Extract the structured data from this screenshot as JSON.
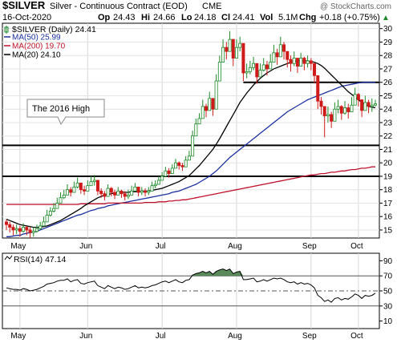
{
  "header": {
    "symbol": "$SILVER",
    "description": "Silver - Continuous Contract (EOD)",
    "exchange": "CME",
    "date": "16-Oct-2020",
    "open_label": "Op",
    "open": "24.43",
    "high_label": "Hi",
    "high": "24.66",
    "low_label": "Lo",
    "low": "24.18",
    "close_label": "Cl",
    "close": "24.41",
    "vol_label": "Vol",
    "vol": "5.1M",
    "chg_label": "Chg",
    "chg": "+0.18 (+0.75%)",
    "arrow": "▲"
  },
  "legend": [
    {
      "label": "$SILVER (Daily) 24.41",
      "color": "#000000"
    },
    {
      "label": "MA(50) 25.99",
      "color": "#1c2f9e"
    },
    {
      "label": "MA(200) 19.70",
      "color": "#c0112b"
    },
    {
      "label": "MA(20) 24.10",
      "color": "#000000"
    }
  ],
  "watermark": "@ StockCharts.com",
  "annotation": "The 2016 High",
  "rsi_label": "RSI(14) 47.14",
  "colors": {
    "up": "#1e8a2a",
    "down": "#d01a1a",
    "ma50": "#1c2f9e",
    "ma200": "#c0112b",
    "ma20": "#000000",
    "rsi_fill": "#5a8a5a"
  },
  "chart_data": [
    {
      "type": "candlestick",
      "x_tick_labels": [
        "May",
        "Jun",
        "Jul",
        "Aug",
        "Sep",
        "Oct"
      ],
      "y_tick_labels": [
        "15",
        "16",
        "17",
        "18",
        "19",
        "20",
        "21",
        "22",
        "23",
        "24",
        "25",
        "26",
        "27",
        "28",
        "29",
        "30"
      ],
      "ylim": [
        14.4,
        30.4
      ],
      "horizontal_lines": [
        26.0,
        21.3,
        19.0
      ],
      "series": [
        {
          "name": "$SILVER (Daily) 24.41",
          "close": [
            15.4,
            15.2,
            15.0,
            15.1,
            14.9,
            15.2,
            15.0,
            14.8,
            14.9,
            15.1,
            15.3,
            15.6,
            16.1,
            16.4,
            16.6,
            17.0,
            17.4,
            17.6,
            18.0,
            17.8,
            18.2,
            18.5,
            18.0,
            17.9,
            18.3,
            18.6,
            18.7,
            17.9,
            17.7,
            17.5,
            18.1,
            17.8,
            17.6,
            17.9,
            17.7,
            17.5,
            17.6,
            17.9,
            18.2,
            17.8,
            17.9,
            17.8,
            17.9,
            18.3,
            18.4,
            18.7,
            19.0,
            19.4,
            19.2,
            19.6,
            20.0,
            19.8,
            19.7,
            20.2,
            20.5,
            22.0,
            22.9,
            23.3,
            24.2,
            23.9,
            24.8,
            24.0,
            26.1,
            27.5,
            28.6,
            28.3,
            29.2,
            27.8,
            28.6,
            28.9,
            26.7,
            26.8,
            27.1,
            27.4,
            26.4,
            26.9,
            27.3,
            27.0,
            27.5,
            28.2,
            27.9,
            28.8,
            28.3,
            27.7,
            27.4,
            27.8,
            27.2,
            27.8,
            27.4,
            27.6,
            27.4,
            26.5,
            24.6,
            24.2,
            23.5,
            23.6,
            23.1,
            24.0,
            24.2,
            23.7,
            24.1,
            23.8,
            24.3,
            25.1,
            24.7,
            23.9,
            24.5,
            24.2,
            24.3,
            24.4
          ],
          "high": [
            15.8,
            15.6,
            15.4,
            15.4,
            15.3,
            15.5,
            15.3,
            15.2,
            15.2,
            15.4,
            15.6,
            16.0,
            16.5,
            16.7,
            17.0,
            17.4,
            17.8,
            18.0,
            18.4,
            18.2,
            18.6,
            18.9,
            18.5,
            18.3,
            18.7,
            19.0,
            19.1,
            18.4,
            18.1,
            17.9,
            18.4,
            18.2,
            18.0,
            18.2,
            18.0,
            17.9,
            18.0,
            18.3,
            18.5,
            18.2,
            18.2,
            18.1,
            18.2,
            18.6,
            18.7,
            19.0,
            19.3,
            19.7,
            19.6,
            19.9,
            20.3,
            20.1,
            20.0,
            20.5,
            20.9,
            22.4,
            23.3,
            23.7,
            24.7,
            24.4,
            25.3,
            24.7,
            26.6,
            28.0,
            29.2,
            29.0,
            29.8,
            28.6,
            29.2,
            29.4,
            27.5,
            27.4,
            27.6,
            27.9,
            27.1,
            27.4,
            27.8,
            27.6,
            28.1,
            28.8,
            28.5,
            29.4,
            29.0,
            28.3,
            28.0,
            28.3,
            27.8,
            28.2,
            27.9,
            28.0,
            27.8,
            27.0,
            25.3,
            24.9,
            24.2,
            24.2,
            23.8,
            24.5,
            24.7,
            24.3,
            24.6,
            24.4,
            24.9,
            25.6,
            25.2,
            24.5,
            25.0,
            24.7,
            24.8,
            24.7
          ],
          "low": [
            15.0,
            14.8,
            14.6,
            14.7,
            14.5,
            14.8,
            14.6,
            14.4,
            14.5,
            14.8,
            15.0,
            15.3,
            15.8,
            16.0,
            16.3,
            16.7,
            17.0,
            17.3,
            17.6,
            17.5,
            17.9,
            18.1,
            17.7,
            17.6,
            18.0,
            18.3,
            18.3,
            17.6,
            17.4,
            17.2,
            17.8,
            17.5,
            17.3,
            17.6,
            17.4,
            17.2,
            17.3,
            17.6,
            17.9,
            17.5,
            17.6,
            17.5,
            17.6,
            18.0,
            18.1,
            18.4,
            18.7,
            19.1,
            18.9,
            19.3,
            19.7,
            19.5,
            19.4,
            19.9,
            20.2,
            21.6,
            22.5,
            22.9,
            23.7,
            23.4,
            24.3,
            23.5,
            25.6,
            27.0,
            28.0,
            27.7,
            28.6,
            27.2,
            28.0,
            28.3,
            26.1,
            26.3,
            26.6,
            26.9,
            25.9,
            26.4,
            26.8,
            26.5,
            27.0,
            27.6,
            27.3,
            28.2,
            27.7,
            27.1,
            26.8,
            27.2,
            26.7,
            27.3,
            26.9,
            27.1,
            26.9,
            25.9,
            24.0,
            23.6,
            21.9,
            23.0,
            22.6,
            23.4,
            23.7,
            23.2,
            23.6,
            23.3,
            23.8,
            24.6,
            24.2,
            23.4,
            24.0,
            23.7,
            23.8,
            24.2
          ]
        }
      ],
      "moving_averages": [
        {
          "name": "MA(50) 25.99",
          "y": [
            14.5,
            14.5,
            14.55,
            14.6,
            14.6,
            14.7,
            14.75,
            14.8,
            14.85,
            14.9,
            15.0,
            15.1,
            15.2,
            15.3,
            15.4,
            15.5,
            15.6,
            15.7,
            15.8,
            15.9,
            16.0,
            16.1,
            16.15,
            16.25,
            16.35,
            16.45,
            16.5,
            16.6,
            16.65,
            16.7,
            16.8,
            16.85,
            16.9,
            16.95,
            17.0,
            17.05,
            17.1,
            17.15,
            17.2,
            17.25,
            17.3,
            17.35,
            17.4,
            17.45,
            17.5,
            17.55,
            17.6,
            17.65,
            17.7,
            17.8,
            17.85,
            17.9,
            18.0,
            18.1,
            18.2,
            18.3,
            18.4,
            18.55,
            18.7,
            18.85,
            19.0,
            19.2,
            19.4,
            19.65,
            19.9,
            20.15,
            20.4,
            20.6,
            20.8,
            21.0,
            21.2,
            21.4,
            21.6,
            21.8,
            22.0,
            22.2,
            22.4,
            22.6,
            22.8,
            23.0,
            23.2,
            23.4,
            23.6,
            23.8,
            23.95,
            24.1,
            24.25,
            24.4,
            24.55,
            24.7,
            24.8,
            24.9,
            25.0,
            25.1,
            25.2,
            25.3,
            25.4,
            25.5,
            25.6,
            25.7,
            25.75,
            25.8,
            25.85,
            25.9,
            25.95,
            25.98,
            26.0,
            26.0,
            26.0,
            25.99
          ]
        },
        {
          "name": "MA(200) 19.70",
          "y": [
            16.9,
            16.9,
            16.9,
            16.9,
            16.9,
            16.9,
            16.9,
            16.9,
            16.9,
            16.9,
            16.9,
            16.9,
            16.9,
            16.9,
            16.9,
            16.9,
            16.9,
            16.9,
            16.9,
            16.9,
            16.9,
            16.9,
            16.95,
            16.95,
            16.95,
            16.95,
            16.95,
            16.95,
            16.95,
            16.95,
            17.0,
            17.0,
            17.0,
            17.0,
            17.0,
            17.0,
            17.0,
            17.0,
            17.0,
            17.0,
            17.0,
            17.05,
            17.05,
            17.05,
            17.05,
            17.1,
            17.1,
            17.1,
            17.15,
            17.15,
            17.2,
            17.2,
            17.25,
            17.25,
            17.3,
            17.35,
            17.4,
            17.45,
            17.5,
            17.55,
            17.6,
            17.65,
            17.7,
            17.75,
            17.8,
            17.85,
            17.9,
            17.95,
            18.0,
            18.05,
            18.1,
            18.15,
            18.2,
            18.25,
            18.3,
            18.35,
            18.4,
            18.45,
            18.5,
            18.55,
            18.6,
            18.65,
            18.7,
            18.75,
            18.8,
            18.85,
            18.9,
            18.95,
            19.0,
            19.05,
            19.1,
            19.1,
            19.15,
            19.2,
            19.2,
            19.25,
            19.3,
            19.3,
            19.35,
            19.4,
            19.4,
            19.45,
            19.5,
            19.5,
            19.55,
            19.6,
            19.6,
            19.65,
            19.7,
            19.7
          ]
        },
        {
          "name": "MA(20) 24.10",
          "y": [
            15.8,
            15.7,
            15.6,
            15.5,
            15.4,
            15.35,
            15.3,
            15.25,
            15.2,
            15.2,
            15.2,
            15.25,
            15.3,
            15.4,
            15.5,
            15.6,
            15.7,
            15.85,
            16.0,
            16.15,
            16.3,
            16.45,
            16.6,
            16.8,
            16.95,
            17.1,
            17.25,
            17.4,
            17.5,
            17.6,
            17.65,
            17.7,
            17.75,
            17.8,
            17.8,
            17.8,
            17.8,
            17.85,
            17.85,
            17.85,
            17.9,
            17.9,
            17.9,
            17.95,
            18.0,
            18.05,
            18.1,
            18.2,
            18.3,
            18.4,
            18.5,
            18.6,
            18.75,
            18.9,
            19.05,
            19.3,
            19.55,
            19.8,
            20.1,
            20.4,
            20.7,
            21.0,
            21.4,
            21.8,
            22.25,
            22.7,
            23.15,
            23.6,
            24.05,
            24.5,
            24.85,
            25.2,
            25.5,
            25.8,
            26.05,
            26.3,
            26.5,
            26.7,
            26.85,
            27.0,
            27.1,
            27.2,
            27.3,
            27.4,
            27.5,
            27.55,
            27.6,
            27.6,
            27.6,
            27.6,
            27.55,
            27.5,
            27.4,
            27.25,
            27.05,
            26.8,
            26.55,
            26.3,
            26.05,
            25.8,
            25.55,
            25.3,
            25.1,
            24.9,
            24.7,
            24.5,
            24.35,
            24.2,
            24.15,
            24.1
          ]
        }
      ]
    },
    {
      "type": "line",
      "y_tick_labels": [
        "10",
        "30",
        "50",
        "70",
        "90"
      ],
      "ylim": [
        0,
        100
      ],
      "reference_lines": [
        70,
        50,
        30
      ],
      "series": [
        {
          "name": "RSI(14) 47.14",
          "y": [
            54,
            53,
            52,
            52,
            51,
            53,
            52,
            50,
            51,
            52,
            54,
            56,
            59,
            60,
            61,
            63,
            64,
            64,
            66,
            62,
            64,
            65,
            60,
            59,
            61,
            62,
            63,
            57,
            55,
            53,
            57,
            55,
            53,
            55,
            54,
            52,
            53,
            55,
            57,
            54,
            55,
            54,
            55,
            57,
            58,
            60,
            62,
            63,
            61,
            63,
            65,
            62,
            61,
            64,
            65,
            71,
            73,
            74,
            76,
            74,
            76,
            72,
            76,
            78,
            79,
            77,
            79,
            73,
            75,
            76,
            65,
            65,
            66,
            67,
            62,
            63,
            65,
            63,
            65,
            67,
            66,
            67,
            65,
            62,
            61,
            62,
            59,
            61,
            59,
            60,
            58,
            54,
            44,
            41,
            36,
            38,
            35,
            40,
            41,
            38,
            40,
            39,
            42,
            46,
            44,
            40,
            44,
            43,
            44,
            47
          ]
        }
      ]
    }
  ]
}
